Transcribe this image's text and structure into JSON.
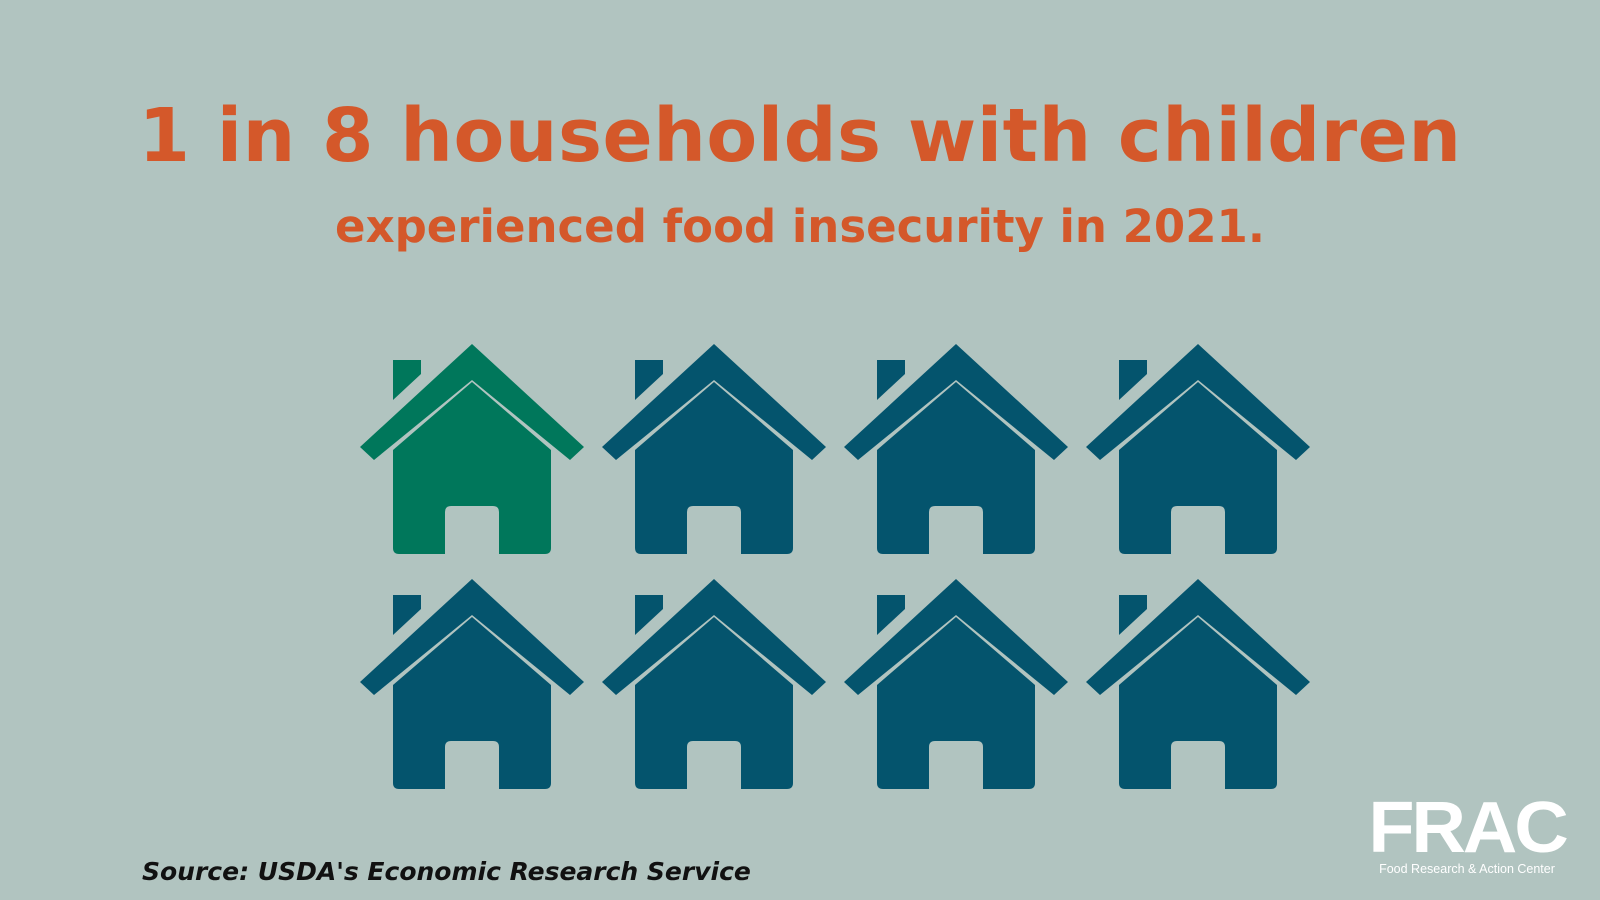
{
  "colors": {
    "background": "#b1c4c0",
    "accent_text": "#d4582a",
    "highlight_house": "#00775b",
    "default_house": "#04546d",
    "logo": "#ffffff"
  },
  "headline": "1 in 8 households with children",
  "subheadline": "experienced food insecurity in 2021.",
  "houses": {
    "total": 8,
    "highlighted": 1,
    "icon": "house-icon"
  },
  "source": "Source: USDA's Economic Research Service",
  "logo": {
    "wordmark": "FRAC",
    "tagline": "Food Research & Action Center"
  }
}
